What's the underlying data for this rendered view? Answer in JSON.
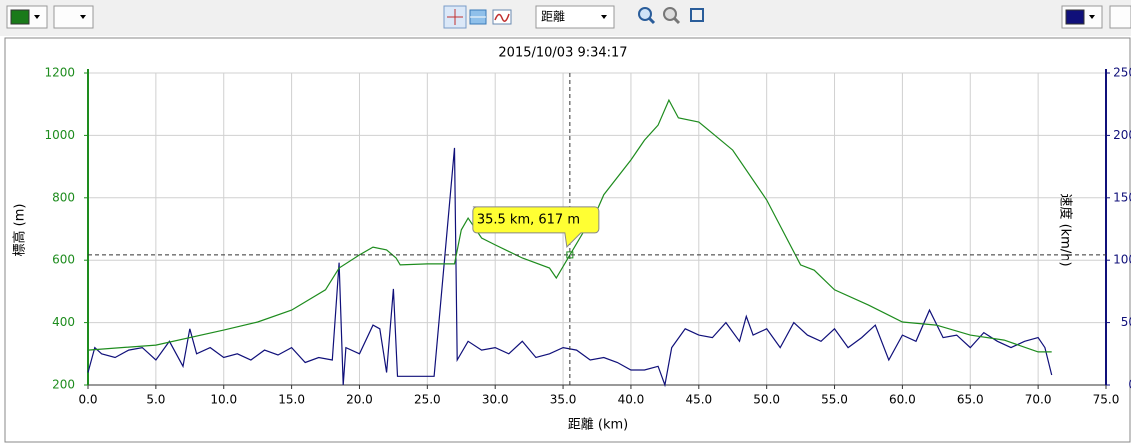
{
  "toolbar": {
    "x_axis_select": "距離"
  },
  "chart_data": {
    "type": "line",
    "title": "2015/10/03 9:34:17",
    "x_label": "距離 (km)",
    "y_label": "標高 (m)",
    "y2_label": "速度 (km/h)",
    "xlim": [
      0,
      75
    ],
    "xticks": [
      {
        "value": 0,
        "label": "0.0"
      },
      {
        "value": 5,
        "label": "5.0"
      },
      {
        "value": 10,
        "label": "10.0"
      },
      {
        "value": 15,
        "label": "15.0"
      },
      {
        "value": 20,
        "label": "20.0"
      },
      {
        "value": 25,
        "label": "25.0"
      },
      {
        "value": 30,
        "label": "30.0"
      },
      {
        "value": 35,
        "label": "35.0"
      },
      {
        "value": 40,
        "label": "40.0"
      },
      {
        "value": 45,
        "label": "45.0"
      },
      {
        "value": 50,
        "label": "50.0"
      },
      {
        "value": 55,
        "label": "55.0"
      },
      {
        "value": 60,
        "label": "60.0"
      },
      {
        "value": 65,
        "label": "65.0"
      },
      {
        "value": 70,
        "label": "70.0"
      },
      {
        "value": 75,
        "label": "75.0"
      }
    ],
    "ylim": [
      200,
      1200
    ],
    "yticks": [
      200,
      400,
      600,
      800,
      1000,
      1200
    ],
    "y2lim": [
      0,
      250
    ],
    "y2ticks": [
      0,
      50,
      100,
      150,
      200,
      250
    ],
    "grid": true,
    "annotation": {
      "text": "35.5 km, 617 m",
      "x": 35.5,
      "y": 617
    },
    "series": [
      {
        "color": "#1e8c1e",
        "x": [
          0,
          5,
          10,
          12.5,
          15,
          17.5,
          18.5,
          20,
          21,
          22,
          22.7,
          23,
          25,
          27,
          27.5,
          28,
          29,
          30,
          32,
          34,
          34.5,
          35.5,
          36.5,
          37.5,
          38,
          40,
          41,
          42,
          42.8,
          43.5,
          45,
          47.5,
          50,
          52.5,
          53.5,
          55,
          57.5,
          60,
          62.5,
          65,
          67.5,
          70,
          71
        ],
        "values": [
          312,
          328,
          376,
          402,
          440,
          505,
          575,
          617,
          642,
          633,
          607,
          585,
          588,
          588,
          697,
          735,
          671,
          649,
          607,
          575,
          543,
          617,
          690,
          760,
          810,
          921,
          985,
          1033,
          1113,
          1056,
          1043,
          953,
          793,
          585,
          568,
          505,
          456,
          402,
          392,
          360,
          344,
          306,
          306
        ]
      },
      {
        "color": "#10107a",
        "axis": "y2",
        "x": [
          0,
          0.5,
          1,
          2,
          3,
          4,
          5,
          6,
          7,
          7.5,
          8,
          9,
          10,
          11,
          12,
          13,
          14,
          15,
          16,
          17,
          18,
          18.5,
          18.8,
          19,
          20,
          21,
          21.5,
          22,
          22.5,
          22.8,
          23,
          25.5,
          27,
          27.2,
          28,
          29,
          30,
          31,
          32,
          33,
          34,
          35,
          36,
          37,
          38,
          39,
          40,
          41,
          42,
          42.5,
          43,
          44,
          45,
          46,
          47,
          48,
          48.5,
          49,
          50,
          51,
          52,
          53,
          54,
          55,
          56,
          57,
          58,
          59,
          60,
          61,
          62,
          63,
          64,
          65,
          66,
          67,
          68,
          69,
          70,
          70.5,
          71
        ],
        "values": [
          10,
          30,
          25,
          22,
          28,
          30,
          20,
          35,
          15,
          45,
          25,
          30,
          22,
          25,
          20,
          28,
          24,
          30,
          18,
          22,
          20,
          98,
          0,
          30,
          25,
          48,
          45,
          10,
          77,
          7,
          7,
          7,
          190,
          20,
          35,
          28,
          30,
          25,
          35,
          22,
          25,
          30,
          28,
          20,
          22,
          18,
          12,
          12,
          15,
          0,
          30,
          45,
          40,
          38,
          50,
          35,
          55,
          40,
          45,
          30,
          50,
          40,
          35,
          45,
          30,
          38,
          48,
          20,
          40,
          35,
          60,
          38,
          40,
          30,
          42,
          35,
          30,
          35,
          38,
          30,
          8
        ]
      }
    ]
  }
}
